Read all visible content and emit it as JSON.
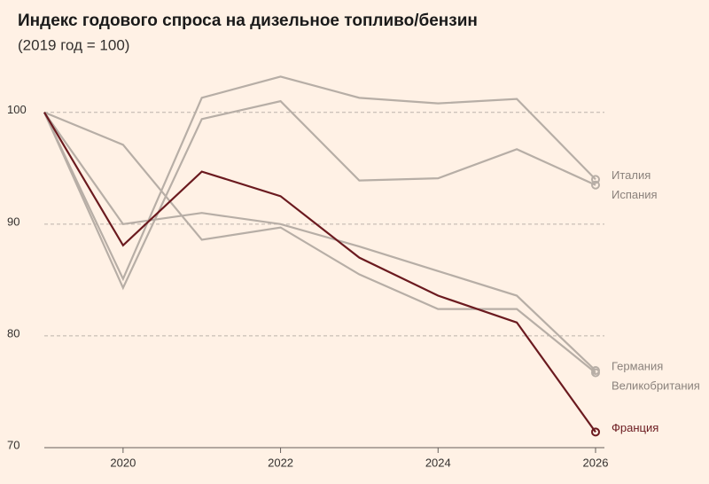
{
  "chart_data": {
    "type": "line",
    "title": "Индекс годового спроса на дизельное топливо/бензин",
    "subtitle": "(2019 год = 100)",
    "x": [
      2019,
      2020,
      2021,
      2022,
      2023,
      2024,
      2025,
      2026
    ],
    "series": [
      {
        "name": "Италия",
        "color": "#b7aea6",
        "values": [
          100,
          85.1,
          101.3,
          103.2,
          101.3,
          100.8,
          101.2,
          94.0
        ]
      },
      {
        "name": "Испания",
        "color": "#b7aea6",
        "values": [
          100,
          84.3,
          99.4,
          101.0,
          93.9,
          94.1,
          96.7,
          93.5
        ]
      },
      {
        "name": "Германия",
        "color": "#b7aea6",
        "values": [
          100,
          90.0,
          91.0,
          90.0,
          88.0,
          85.8,
          83.6,
          76.9
        ]
      },
      {
        "name": "Великобритания",
        "color": "#b7aea6",
        "values": [
          100,
          97.1,
          88.6,
          89.7,
          85.5,
          82.4,
          82.4,
          76.7
        ]
      },
      {
        "name": "Франция",
        "color": "#6b1a1f",
        "values": [
          100,
          88.1,
          94.7,
          92.5,
          87.0,
          83.6,
          81.2,
          71.4
        ]
      }
    ],
    "xlim": [
      2019,
      2026
    ],
    "xticks": [
      2020,
      2022,
      2024,
      2026
    ],
    "ylim": [
      70,
      104.5
    ],
    "yticks": [
      70,
      80,
      90,
      100
    ],
    "grid": true
  }
}
